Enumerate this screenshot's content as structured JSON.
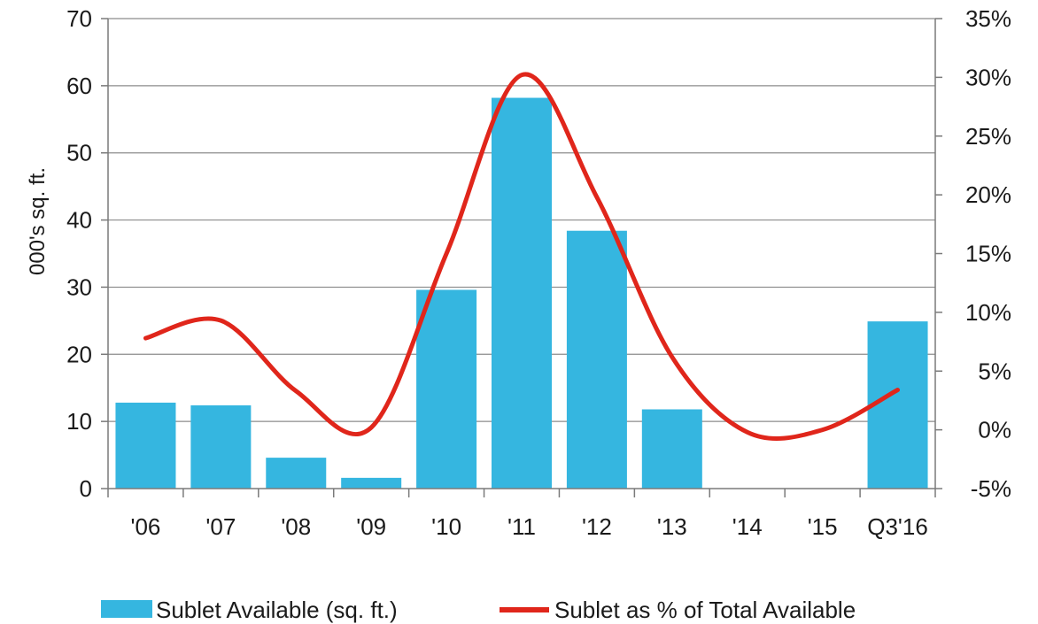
{
  "chart_data": {
    "type": "bar",
    "title": "",
    "categories": [
      "'06",
      "'07",
      "'08",
      "'09",
      "'10",
      "'11",
      "'12",
      "'13",
      "'14",
      "'15",
      "Q3'16"
    ],
    "series": [
      {
        "name": "Sublet Available (sq. ft.)",
        "type": "bar",
        "axis": "left",
        "color": "#35b6e0",
        "values": [
          12.8,
          12.4,
          4.6,
          1.6,
          29.6,
          58.2,
          38.4,
          11.8,
          0,
          0,
          24.9
        ]
      },
      {
        "name": "Sublet as % of Total Available",
        "type": "line",
        "axis": "right",
        "color": "#e0261b",
        "values": [
          7.8,
          9.3,
          3.3,
          0.2,
          15.0,
          30.2,
          19.8,
          6.2,
          -0.2,
          0.0,
          3.4
        ]
      }
    ],
    "ylabel": "000's sq. ft.",
    "ylim": [
      0,
      70
    ],
    "yticks": [
      "0",
      "10",
      "20",
      "30",
      "40",
      "50",
      "60",
      "70"
    ],
    "y2lim": [
      -5,
      35
    ],
    "y2ticks": [
      "-5%",
      "0%",
      "5%",
      "10%",
      "15%",
      "20%",
      "25%",
      "30%",
      "35%"
    ],
    "grid": true,
    "legend_position": "bottom"
  }
}
